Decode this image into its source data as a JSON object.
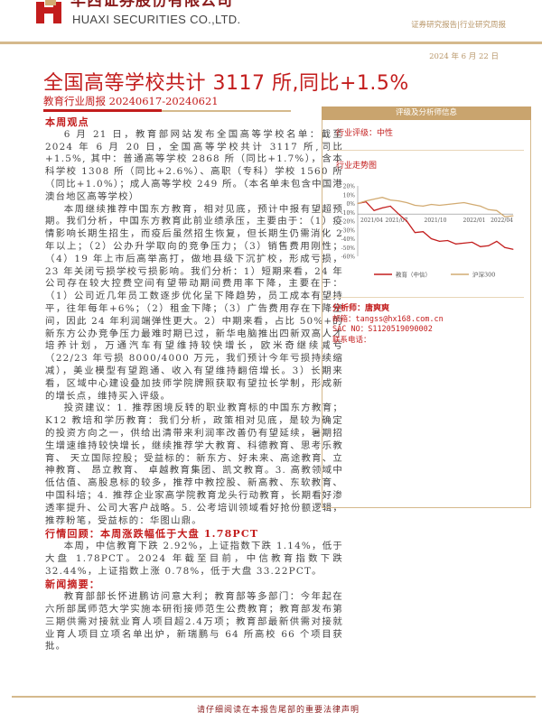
{
  "header": {
    "company_cn": "华西证券股份有限公司",
    "company_en": "HUAXI SECURITIES CO.,LTD.",
    "report_type": "证券研究报告|行业研究周报",
    "date": "2024 年 6 月 22 日"
  },
  "title": "全国高等学校共计 3117 所,同比+1.5%",
  "subtitle": "教育行业周报 20240617-20240621",
  "left": {
    "sec1_heading": "本周观点",
    "sec1_p1": "6 月 21 日，教育部网站发布全国高等学校名单：截至 2024 年 6 月 20 日，全国高等学校共计 3117 所,同比+1.5%, 其中：普通高等学校 2868 所（同比+1.7%），含本科学校 1308 所（同比+2.6%）、高职（专科）学校 1560 所（同比+1.0%）；成人高等学校 249 所。（本名单未包含中国港澳台地区高等学校）",
    "sec1_p2": "本周继续推荐中国东方教育，相对见底，预计中报有望超预期。我们分析，中国东方教育此前业绩承压，主要由于：（1）疫情影响长期生招生，而疫后虽然招生恢复，但长期生仍需消化 2 年以上；（2）公办升学取向的竞争压力；（3）销售费用刚性；（4）19 年上市后高举高打，做地县级下沉扩校，形成亏损，23 年关闭亏损学校亏损影响。我们分析：1）短期来看，24 年公司存在较大控费空间有望带动期间费用率下降，主要在于：（1）公司近几年员工数逐步优化呈下降趋势，员工成本有望持平，往年每年+6%；（2）租金下降；（3）广告费用存在下降空间，因此 24 年利润端弹性更大。2）中期来看，占比 50%+的新东方公办竞争压力最难时期已过，新华电脑推出四新双高人才培养计划，万通汽车有望维持较快增长，欧米奇继续减亏（22/23 年亏损 8000/4000 万元，我们预计今年亏损持续缩减），美业模型有望跑通、收入有望维持翻倍增长。3）长期来看，区域中心建设叠加技师学院牌照获取有望拉长学制，形成新的增长点，维持买入评级。",
    "sec1_p3": "投资建议：1. 推荐困境反转的职业教育标的中国东方教育；K12 教培和学历教育：我们分析，政策相对见底，是较为确定的投资方向之一，供给出清带来利润率改善仍有望延续，暑期招生增速维持较快增长，继续推荐学大教育、科德教育、思考乐教育、 天立国际控股；受益标的：新东方、好未来、高途教育、立神教育、 昂立教育、 卓越教育集团、凯文教育。3. 高教领域中低估值、高股息标的较多，推荐中教控股、新高教、东软教育、中国科培；4. 推荐企业家高学院教育龙头行动教育，长期看好渗透率提升、公司大客户战略。5. 公考培训领域看好抢份额逻辑，推荐粉笔，受益标的：华图山鼎。",
    "sec2_heading": "行情回顾：本周涨跌幅低于大盘 1.78PCT",
    "sec2_p1": "本周，中信教育下跌 2.92%，上证指数下跌 1.14%，低于大盘 1.78PCT。2024 年截至目前，中信教育指数下跌 32.44%，上证指数上涨 0.78%，低于大盘 33.22PCT。",
    "sec3_heading": "新闻摘要：",
    "sec3_p1": "教育部部长怀进鹏访问意大利；教育部等多部门：今年起在六所部属师范大学实施本研衔接师范生公费教育；教育部发布第三期供需对接就业育人项目超2.4万项；教育部最新供需对接就业育人项目立项名单出炉，新瑞鹏与 64 所高校 66 个项目获批。"
  },
  "panel": {
    "bar_title": "评级及分析师信息",
    "rating": "行业评级：中性",
    "chart_title": "行业走势图",
    "analyst": "分析师：唐爽爽",
    "email": "邮箱：tangss@hx168.com.cn",
    "sac": "SAC NO：S1120519090002",
    "phone": "联系电话："
  },
  "chart_data": {
    "type": "line",
    "x": [
      "2021/04",
      "2021/04/15",
      "2021/05",
      "2021/05/15",
      "2021/06",
      "2021/06/15",
      "2021/07",
      "2021/07/15",
      "2021/08",
      "2021/09",
      "2021/10",
      "2021/11",
      "2021/12",
      "2022/01",
      "2022/01/15",
      "2022/02",
      "2022/02/15",
      "2022/03",
      "2022/03/15",
      "2022/04"
    ],
    "xticks": [
      "2021/04",
      "2021/07",
      "2021/10",
      "2022/01",
      "2022/04"
    ],
    "yticks": [
      "20%",
      "10%",
      "0%",
      "-10%",
      "-20%",
      "-30%",
      "-40%",
      "-50%",
      "-60%"
    ],
    "ylim": [
      -60,
      20
    ],
    "series": [
      {
        "name": "教育（中信）",
        "color": "#c31d1d",
        "values": [
          0,
          2,
          -8,
          -5,
          -3,
          -12,
          -20,
          -33,
          -32,
          -40,
          -43,
          -42,
          -46,
          -45,
          -44,
          -49,
          -48,
          -43,
          -50,
          -52
        ]
      },
      {
        "name": "沪深300",
        "color": "#d2ab72",
        "values": [
          0,
          3,
          5,
          7,
          4,
          3,
          1,
          -2,
          -3,
          -1,
          -2,
          -1,
          0,
          1,
          -1,
          -3,
          -7,
          -8,
          -15,
          -14
        ]
      }
    ]
  },
  "footer": "请仔细阅读在本报告尾部的重要法律声明"
}
